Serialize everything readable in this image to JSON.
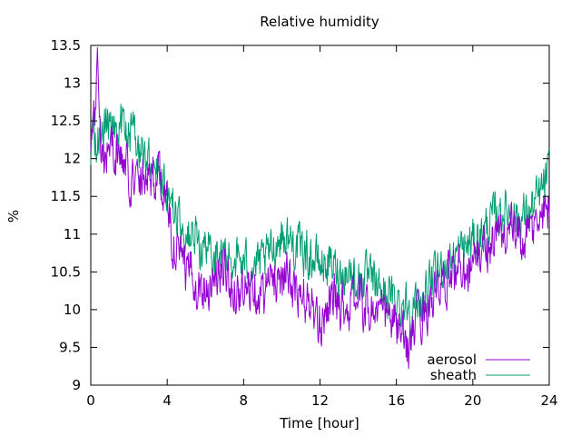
{
  "chart_data": {
    "type": "line",
    "title": "Relative humidity",
    "xlabel": "Time [hour]",
    "ylabel": "%",
    "xlim": [
      0,
      24
    ],
    "ylim": [
      9,
      13.5
    ],
    "xticks": [
      0,
      4,
      8,
      12,
      16,
      20,
      24
    ],
    "yticks": [
      9,
      9.5,
      10,
      10.5,
      11,
      11.5,
      12,
      12.5,
      13,
      13.5
    ],
    "grid": false,
    "legend_position": "bottom-right",
    "colors": {
      "aerosol": "#9400d3",
      "sheath": "#009e73"
    },
    "series": [
      {
        "name": "aerosol",
        "x": [
          0,
          0.2,
          0.35,
          0.5,
          0.7,
          1,
          1.3,
          1.6,
          2,
          2.4,
          2.8,
          3.2,
          3.6,
          4,
          4.3,
          4.6,
          5,
          5.5,
          6,
          6.5,
          7,
          7.5,
          8,
          8.5,
          9,
          9.5,
          10,
          10.5,
          11,
          11.5,
          11.9,
          12.5,
          13,
          13.5,
          14,
          14.5,
          15,
          15.5,
          16,
          16.3,
          16.6,
          17,
          17.5,
          18,
          18.5,
          19,
          19.5,
          20,
          20.5,
          21,
          21.5,
          22,
          22.5,
          23,
          23.5,
          24
        ],
        "y": [
          12.3,
          12.5,
          13.5,
          12.4,
          12.0,
          12.2,
          12.1,
          12.0,
          11.8,
          11.7,
          11.9,
          11.8,
          11.7,
          11.4,
          10.9,
          10.7,
          10.5,
          10.4,
          10.3,
          10.4,
          10.5,
          10.3,
          10.2,
          10.4,
          10.2,
          10.4,
          10.5,
          10.3,
          10.1,
          10.1,
          9.7,
          10.2,
          10.1,
          10.0,
          10.2,
          10.0,
          10.0,
          9.9,
          9.8,
          9.6,
          9.5,
          9.8,
          10.0,
          10.2,
          10.3,
          10.5,
          10.6,
          10.6,
          10.8,
          10.9,
          11.0,
          11.1,
          10.9,
          11.0,
          11.2,
          11.4
        ]
      },
      {
        "name": "sheath",
        "x": [
          0,
          0.2,
          0.5,
          0.8,
          1,
          1.4,
          1.8,
          2.2,
          2.6,
          3,
          3.4,
          3.8,
          4.2,
          4.6,
          5,
          5.5,
          6,
          6.5,
          7,
          7.5,
          8,
          8.5,
          9,
          9.5,
          10,
          10.5,
          11,
          11.5,
          12,
          12.5,
          13,
          13.5,
          14,
          14.5,
          15,
          15.5,
          16,
          16.5,
          17,
          17.5,
          18,
          18.5,
          19,
          19.5,
          20,
          20.5,
          21,
          21.5,
          22,
          22.5,
          23,
          23.5,
          24
        ],
        "y": [
          12.1,
          12.3,
          12.2,
          12.4,
          12.5,
          12.5,
          12.4,
          12.3,
          12.1,
          12.0,
          12.0,
          11.8,
          11.4,
          11.2,
          11.0,
          10.9,
          10.8,
          10.7,
          10.7,
          10.7,
          10.6,
          10.6,
          10.6,
          10.8,
          11.0,
          10.9,
          10.8,
          10.7,
          10.6,
          10.6,
          10.5,
          10.5,
          10.4,
          10.4,
          10.3,
          10.2,
          10.1,
          10.1,
          10.0,
          10.2,
          10.4,
          10.6,
          10.7,
          10.8,
          10.9,
          11.0,
          11.2,
          11.3,
          11.3,
          11.2,
          11.3,
          11.5,
          11.8
        ]
      }
    ]
  }
}
